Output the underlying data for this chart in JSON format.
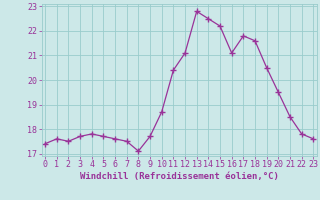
{
  "x": [
    0,
    1,
    2,
    3,
    4,
    5,
    6,
    7,
    8,
    9,
    10,
    11,
    12,
    13,
    14,
    15,
    16,
    17,
    18,
    19,
    20,
    21,
    22,
    23
  ],
  "y": [
    17.4,
    17.6,
    17.5,
    17.7,
    17.8,
    17.7,
    17.6,
    17.5,
    17.1,
    17.7,
    18.7,
    20.4,
    21.1,
    22.8,
    22.5,
    22.2,
    21.1,
    21.8,
    21.6,
    20.5,
    19.5,
    18.5,
    17.8,
    17.6
  ],
  "line_color": "#993399",
  "marker": "+",
  "bg_color": "#cce8e8",
  "grid_color": "#99cccc",
  "xlabel": "Windchill (Refroidissement éolien,°C)",
  "xlabel_color": "#993399",
  "tick_color": "#993399",
  "ylim": [
    17,
    23
  ],
  "xlim": [
    0,
    23
  ],
  "yticks": [
    17,
    18,
    19,
    20,
    21,
    22,
    23
  ],
  "xticks": [
    0,
    1,
    2,
    3,
    4,
    5,
    6,
    7,
    8,
    9,
    10,
    11,
    12,
    13,
    14,
    15,
    16,
    17,
    18,
    19,
    20,
    21,
    22,
    23
  ],
  "tick_fontsize": 6.0,
  "xlabel_fontsize": 6.5
}
